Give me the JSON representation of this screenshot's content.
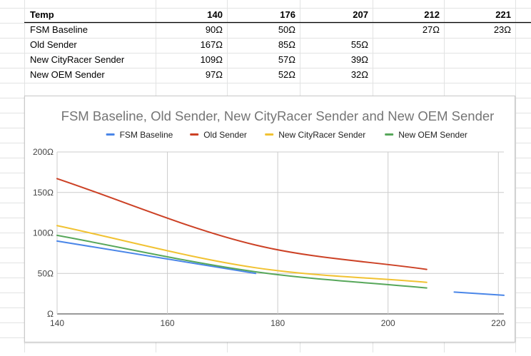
{
  "table": {
    "header": [
      "Temp",
      "140",
      "176",
      "207",
      "212",
      "221"
    ],
    "rows": [
      [
        "FSM Baseline",
        "90Ω",
        "50Ω",
        "",
        "27Ω",
        "23Ω"
      ],
      [
        "Old Sender",
        "167Ω",
        "85Ω",
        "55Ω",
        "",
        ""
      ],
      [
        "New CityRacer Sender",
        "109Ω",
        "57Ω",
        "39Ω",
        "",
        ""
      ],
      [
        "New OEM Sender",
        "97Ω",
        "52Ω",
        "32Ω",
        "",
        ""
      ]
    ]
  },
  "chart_data": {
    "type": "line",
    "title": "FSM Baseline, Old Sender, New CityRacer Sender and New OEM Sender",
    "xlabel": "",
    "ylabel": "",
    "xlim": [
      140,
      221
    ],
    "ylim": [
      0,
      200
    ],
    "xticks": [
      140,
      160,
      180,
      200,
      220
    ],
    "yticks": [
      0,
      50,
      100,
      150,
      200
    ],
    "ytick_labels": [
      "Ω",
      "50Ω",
      "100Ω",
      "150Ω",
      "200Ω"
    ],
    "legend_position": "top",
    "grid": true,
    "series": [
      {
        "name": "FSM Baseline",
        "color": "#4a86e8",
        "segments": [
          [
            [
              140,
              90
            ],
            [
              176,
              50
            ]
          ],
          [
            [
              212,
              27
            ],
            [
              221,
              23
            ]
          ]
        ]
      },
      {
        "name": "Old Sender",
        "color": "#cc4125",
        "segments": [
          [
            [
              140,
              167
            ],
            [
              176,
              85
            ],
            [
              207,
              55
            ]
          ]
        ]
      },
      {
        "name": "New CityRacer Sender",
        "color": "#f1c232",
        "segments": [
          [
            [
              140,
              109
            ],
            [
              176,
              57
            ],
            [
              207,
              39
            ]
          ]
        ]
      },
      {
        "name": "New OEM Sender",
        "color": "#57a75a",
        "segments": [
          [
            [
              140,
              97
            ],
            [
              176,
              52
            ],
            [
              207,
              32
            ]
          ]
        ]
      }
    ]
  }
}
